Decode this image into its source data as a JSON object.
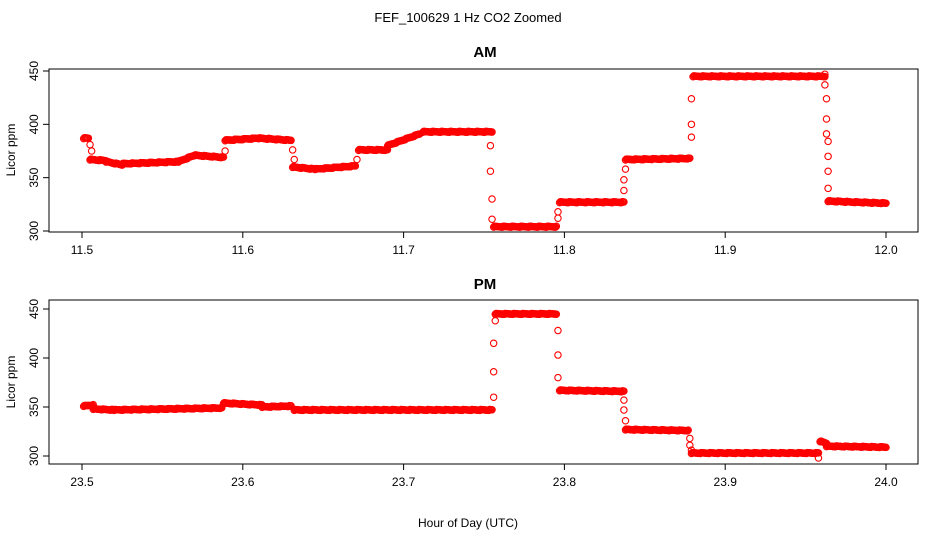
{
  "figure": {
    "title": "FEF_100629  1 Hz CO2 Zoomed",
    "xlabel": "Hour of Day (UTC)"
  },
  "colors": {
    "marker": "#ff0000",
    "axis": "#000000",
    "background": "#ffffff"
  },
  "chart_data": [
    {
      "type": "scatter",
      "title": "AM",
      "ylabel": "Licor ppm",
      "xlim": [
        11.5,
        12.0
      ],
      "ylim": [
        300,
        450
      ],
      "xticks": [
        "11.5",
        "11.6",
        "11.7",
        "11.8",
        "11.9",
        "12.0"
      ],
      "yticks": [
        "300",
        "350",
        "400",
        "450"
      ],
      "marker": "open-circle",
      "series": [
        {
          "segments": [
            {
              "x0": 11.501,
              "x1": 11.504,
              "y0": 387,
              "y1": 387
            },
            {
              "x0": 11.505,
              "x1": 11.515,
              "y0": 367,
              "y1": 366
            },
            {
              "x0": 11.515,
              "x1": 11.525,
              "y0": 365,
              "y1": 362
            },
            {
              "x0": 11.525,
              "x1": 11.56,
              "y0": 363,
              "y1": 365
            },
            {
              "x0": 11.56,
              "x1": 11.57,
              "y0": 365,
              "y1": 371
            },
            {
              "x0": 11.57,
              "x1": 11.588,
              "y0": 371,
              "y1": 369
            },
            {
              "x0": 11.589,
              "x1": 11.61,
              "y0": 385,
              "y1": 387
            },
            {
              "x0": 11.61,
              "x1": 11.63,
              "y0": 387,
              "y1": 385
            },
            {
              "x0": 11.631,
              "x1": 11.645,
              "y0": 360,
              "y1": 358
            },
            {
              "x0": 11.645,
              "x1": 11.67,
              "y0": 358,
              "y1": 361
            },
            {
              "x0": 11.672,
              "x1": 11.69,
              "y0": 376,
              "y1": 376
            },
            {
              "x0": 11.69,
              "x1": 11.71,
              "y0": 380,
              "y1": 391
            },
            {
              "x0": 11.712,
              "x1": 11.755,
              "y0": 393,
              "y1": 393
            },
            {
              "x0": 11.756,
              "x1": 11.795,
              "y0": 304,
              "y1": 304
            },
            {
              "x0": 11.797,
              "x1": 11.837,
              "y0": 327,
              "y1": 327
            },
            {
              "x0": 11.838,
              "x1": 11.878,
              "y0": 367,
              "y1": 368
            },
            {
              "x0": 11.88,
              "x1": 11.962,
              "y0": 445,
              "y1": 445
            },
            {
              "x0": 11.964,
              "x1": 12.0,
              "y0": 328,
              "y1": 326
            }
          ],
          "transitions": [
            [
              11.505,
              381
            ],
            [
              11.506,
              375
            ],
            [
              11.589,
              375
            ],
            [
              11.631,
              376
            ],
            [
              11.632,
              367
            ],
            [
              11.671,
              367
            ],
            [
              11.754,
              380
            ],
            [
              11.754,
              356
            ],
            [
              11.755,
              330
            ],
            [
              11.755,
              311
            ],
            [
              11.796,
              312
            ],
            [
              11.796,
              318
            ],
            [
              11.837,
              338
            ],
            [
              11.837,
              348
            ],
            [
              11.838,
              358
            ],
            [
              11.879,
              388
            ],
            [
              11.879,
              400
            ],
            [
              11.879,
              424
            ],
            [
              11.962,
              447
            ],
            [
              11.962,
              437
            ],
            [
              11.963,
              424
            ],
            [
              11.963,
              405
            ],
            [
              11.963,
              391
            ],
            [
              11.964,
              384
            ],
            [
              11.964,
              370
            ],
            [
              11.964,
              356
            ],
            [
              11.964,
              340
            ]
          ]
        }
      ]
    },
    {
      "type": "scatter",
      "title": "PM",
      "ylabel": "Licor ppm",
      "xlim": [
        23.5,
        24.0
      ],
      "ylim": [
        300,
        450
      ],
      "xticks": [
        "23.5",
        "23.6",
        "23.7",
        "23.8",
        "23.9",
        "24.0"
      ],
      "yticks": [
        "300",
        "350",
        "400",
        "450"
      ],
      "marker": "open-circle",
      "series": [
        {
          "segments": [
            {
              "x0": 23.501,
              "x1": 23.507,
              "y0": 351,
              "y1": 352
            },
            {
              "x0": 23.507,
              "x1": 23.52,
              "y0": 348,
              "y1": 347
            },
            {
              "x0": 23.52,
              "x1": 23.587,
              "y0": 347,
              "y1": 349
            },
            {
              "x0": 23.588,
              "x1": 23.612,
              "y0": 354,
              "y1": 352
            },
            {
              "x0": 23.612,
              "x1": 23.63,
              "y0": 350,
              "y1": 351
            },
            {
              "x0": 23.632,
              "x1": 23.755,
              "y0": 347,
              "y1": 347
            },
            {
              "x0": 23.757,
              "x1": 23.795,
              "y0": 445,
              "y1": 445
            },
            {
              "x0": 23.797,
              "x1": 23.837,
              "y0": 367,
              "y1": 366
            },
            {
              "x0": 23.838,
              "x1": 23.877,
              "y0": 327,
              "y1": 326
            },
            {
              "x0": 23.879,
              "x1": 23.958,
              "y0": 303,
              "y1": 303
            },
            {
              "x0": 23.959,
              "x1": 23.963,
              "y0": 315,
              "y1": 313
            },
            {
              "x0": 23.963,
              "x1": 24.0,
              "y0": 310,
              "y1": 309
            }
          ],
          "transitions": [
            [
              23.756,
              360
            ],
            [
              23.756,
              386
            ],
            [
              23.756,
              415
            ],
            [
              23.757,
              438
            ],
            [
              23.796,
              428
            ],
            [
              23.796,
              403
            ],
            [
              23.796,
              380
            ],
            [
              23.837,
              357
            ],
            [
              23.837,
              347
            ],
            [
              23.838,
              336
            ],
            [
              23.878,
              318
            ],
            [
              23.878,
              311
            ],
            [
              23.879,
              306
            ],
            [
              23.958,
              298
            ]
          ]
        }
      ]
    }
  ]
}
